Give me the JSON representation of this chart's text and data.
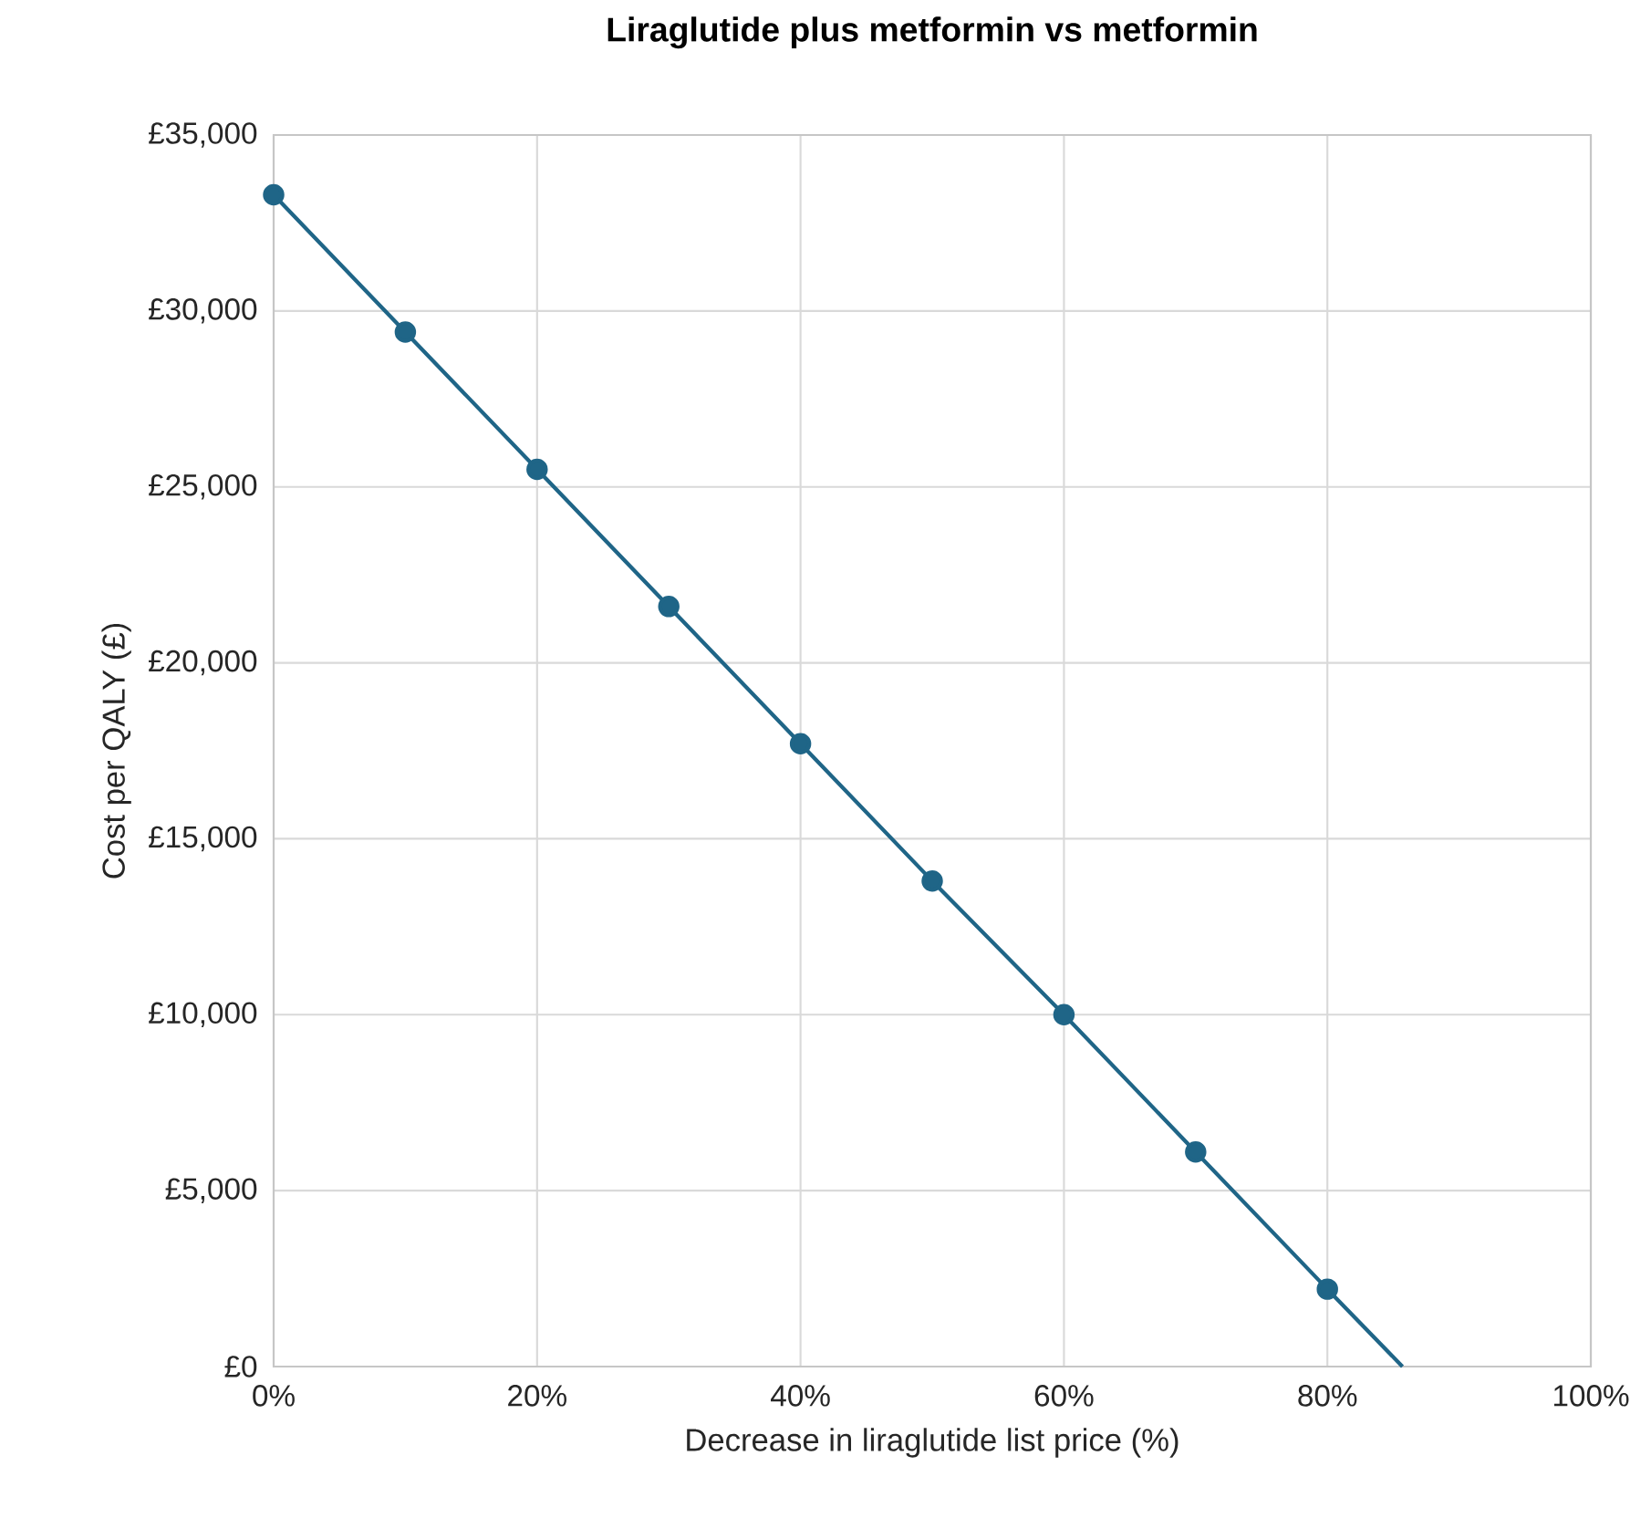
{
  "chart_data": {
    "type": "line",
    "title": "Liraglutide plus metformin vs metformin",
    "xlabel": "Decrease in liraglutide list price (%)",
    "ylabel": "Cost per QALY  (£)",
    "series": [
      {
        "color": "#1f6587",
        "x": [
          0,
          10,
          20,
          30,
          40,
          50,
          60,
          70,
          80
        ],
        "values": [
          33300,
          29400,
          25500,
          21600,
          17700,
          13800,
          10000,
          6100,
          2200
        ],
        "marker": "circle",
        "line_style": "solid"
      },
      {
        "type": "line",
        "color": "#1f6587",
        "x": [
          80,
          85.7
        ],
        "values": [
          2200,
          0
        ],
        "marker": "none",
        "line_style": "solid"
      }
    ],
    "xlim": [
      0,
      100
    ],
    "ylim": [
      0,
      35000
    ],
    "xticks": [
      {
        "value": 0,
        "label": "0%"
      },
      {
        "value": 20,
        "label": "20%"
      },
      {
        "value": 40,
        "label": "40%"
      },
      {
        "value": 60,
        "label": "60%"
      },
      {
        "value": 80,
        "label": "80%"
      },
      {
        "value": 100,
        "label": "100%"
      }
    ],
    "yticks": [
      {
        "value": 0,
        "label": "£0"
      },
      {
        "value": 5000,
        "label": "£5,000"
      },
      {
        "value": 10000,
        "label": "£10,000"
      },
      {
        "value": 15000,
        "label": "£15,000"
      },
      {
        "value": 20000,
        "label": "£20,000"
      },
      {
        "value": 25000,
        "label": "£25,000"
      },
      {
        "value": 30000,
        "label": "£30,000"
      },
      {
        "value": 35000,
        "label": "£35,000"
      }
    ],
    "grid": true
  }
}
